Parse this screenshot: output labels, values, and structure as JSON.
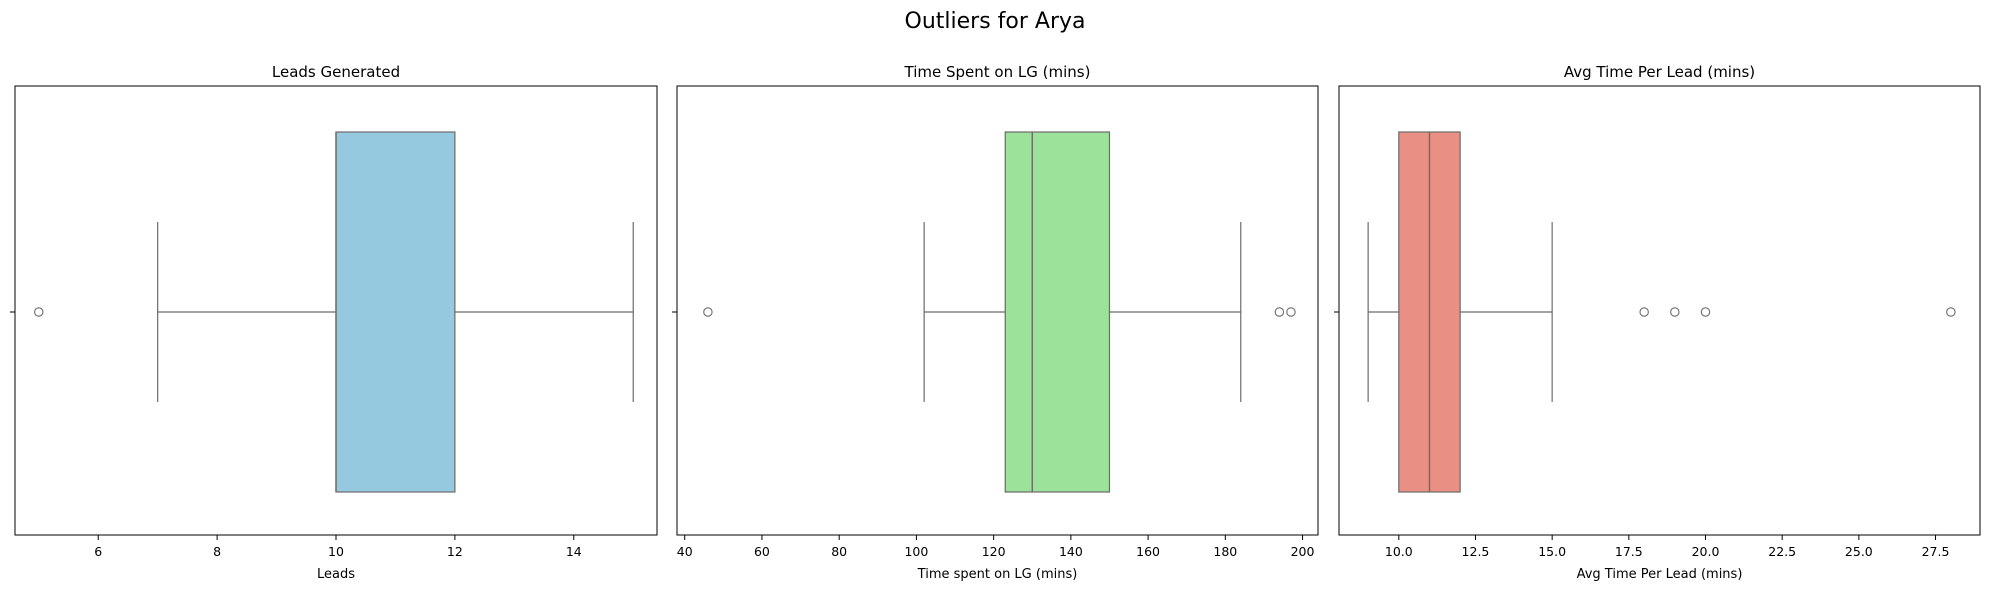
{
  "figure_title": "Outliers for Arya",
  "chart_data": [
    {
      "type": "boxplot",
      "title": "Leads Generated",
      "xlabel": "Leads",
      "color": "#95c9df",
      "xlim": [
        4.6,
        15.4
      ],
      "xticks": [
        6,
        8,
        10,
        12,
        14
      ],
      "tick_labels": [
        "6",
        "8",
        "10",
        "12",
        "14"
      ],
      "whisker_low": 7,
      "q1": 10,
      "median": 10,
      "q3": 12,
      "whisker_high": 15,
      "outliers": [
        5
      ]
    },
    {
      "type": "boxplot",
      "title": "Time Spent on LG (mins)",
      "xlabel": "Time spent on LG (mins)",
      "color": "#9de29a",
      "xlim": [
        38,
        204
      ],
      "xticks": [
        40,
        60,
        80,
        100,
        120,
        140,
        160,
        180,
        200
      ],
      "tick_labels": [
        "40",
        "60",
        "80",
        "100",
        "120",
        "140",
        "160",
        "180",
        "200"
      ],
      "whisker_low": 102,
      "q1": 123,
      "median": 130,
      "q3": 150,
      "whisker_high": 184,
      "outliers": [
        46,
        194,
        197
      ]
    },
    {
      "type": "boxplot",
      "title": "Avg Time Per Lead (mins)",
      "xlabel": "Avg Time Per Lead (mins)",
      "color": "#e98f83",
      "xlim": [
        8.05,
        28.95
      ],
      "xticks": [
        10,
        12.5,
        15,
        17.5,
        20,
        22.5,
        25,
        27.5
      ],
      "tick_labels": [
        "10.0",
        "12.5",
        "15.0",
        "17.5",
        "20.0",
        "22.5",
        "25.0",
        "27.5"
      ],
      "whisker_low": 9,
      "q1": 10,
      "median": 11,
      "q3": 12,
      "whisker_high": 15,
      "outliers": [
        18,
        19,
        20,
        28
      ]
    }
  ]
}
